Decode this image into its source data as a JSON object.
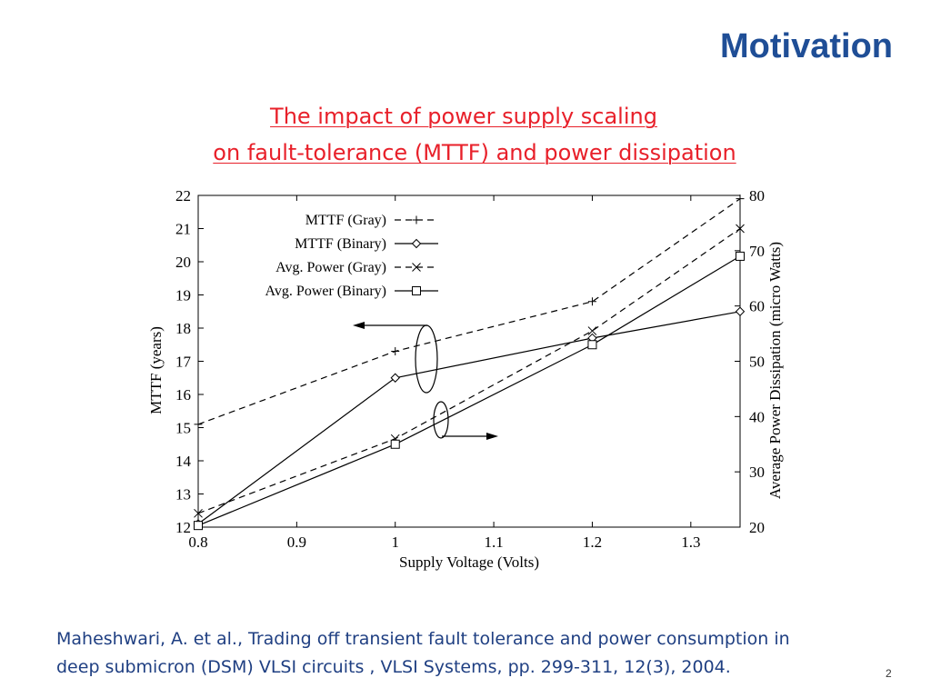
{
  "slide": {
    "title": "Motivation",
    "subtitle_line1": "The impact of power supply scaling",
    "subtitle_line2": "on fault-tolerance (MTTF) and power dissipation",
    "citation_line1": "Maheshwari, A. et al., Trading off transient fault tolerance and power consumption in",
    "citation_line2": "deep submicron (DSM) VLSI circuits ,  VLSI Systems, pp. 299-311, 12(3), 2004.",
    "page_number": "2"
  },
  "chart_data": {
    "type": "line",
    "xlabel": "Supply Voltage (Volts)",
    "ylabel": "MTTF (years)",
    "y2label": "Average Power Dissipation (micro Watts)",
    "xlim": [
      0.8,
      1.35
    ],
    "ylim": [
      12,
      22
    ],
    "y2lim": [
      20,
      80
    ],
    "xticks": [
      "0.8",
      "0.9",
      "1",
      "1.1",
      "1.2",
      "1.3"
    ],
    "yticks": [
      "12",
      "13",
      "14",
      "15",
      "16",
      "17",
      "18",
      "19",
      "20",
      "21",
      "22"
    ],
    "y2ticks": [
      "20",
      "30",
      "40",
      "50",
      "60",
      "70",
      "80"
    ],
    "legend_position": "top-left",
    "series": [
      {
        "name": "MTTF (Gray)",
        "axis": "left",
        "marker": "plus",
        "dash": true,
        "x": [
          0.8,
          1.0,
          1.2,
          1.35
        ],
        "values": [
          15.1,
          17.3,
          18.8,
          21.9
        ]
      },
      {
        "name": "MTTF (Binary)",
        "axis": "left",
        "marker": "diamond",
        "dash": false,
        "x": [
          0.8,
          1.0,
          1.2,
          1.35
        ],
        "values": [
          12.1,
          16.5,
          17.7,
          18.5
        ]
      },
      {
        "name": "Avg. Power (Gray)",
        "axis": "right",
        "marker": "cross",
        "dash": true,
        "x": [
          0.8,
          1.0,
          1.2,
          1.35
        ],
        "values": [
          22.5,
          36.0,
          55.5,
          74.0
        ]
      },
      {
        "name": "Avg. Power (Binary)",
        "axis": "right",
        "marker": "square",
        "dash": false,
        "x": [
          0.8,
          1.0,
          1.2,
          1.35
        ],
        "values": [
          20.3,
          35.0,
          53.0,
          69.0
        ]
      }
    ]
  }
}
